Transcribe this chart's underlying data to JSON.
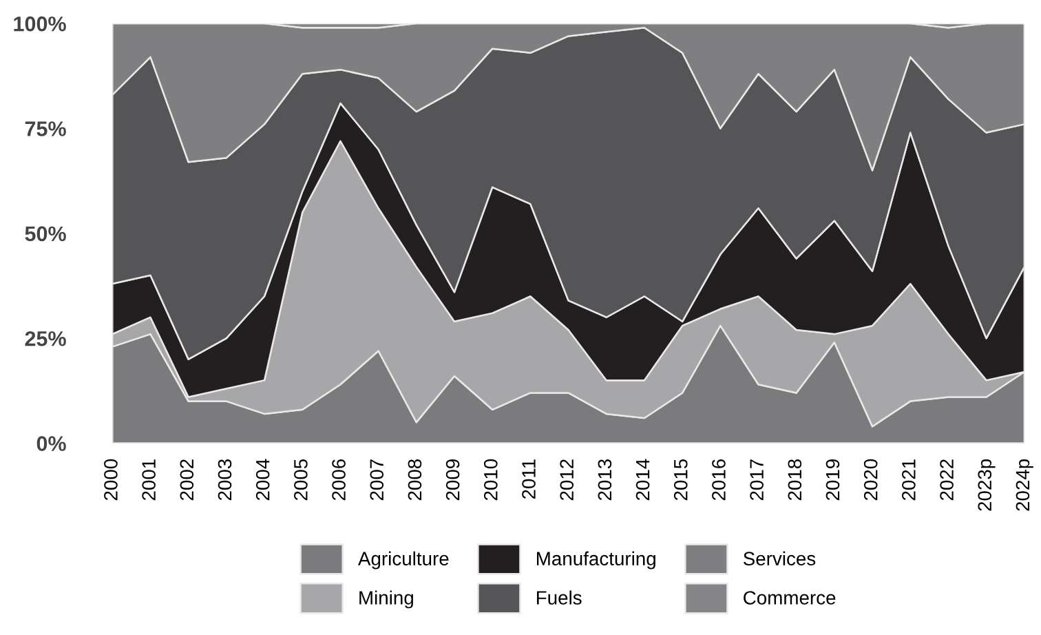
{
  "chart_data": {
    "type": "area",
    "stacked": true,
    "categories": [
      "2000",
      "2001",
      "2002",
      "2003",
      "2004",
      "2005",
      "2006",
      "2007",
      "2008",
      "2009",
      "2010",
      "2011",
      "2012",
      "2013",
      "2014",
      "2015",
      "2016",
      "2017",
      "2018",
      "2019",
      "2020",
      "2021",
      "2022",
      "2023p",
      "2024p"
    ],
    "series": [
      {
        "name": "Agriculture",
        "color": "#7b7b7d",
        "values": [
          23,
          26,
          10,
          10,
          7,
          8,
          14,
          22,
          5,
          16,
          8,
          12,
          12,
          7,
          6,
          12,
          28,
          14,
          12,
          24,
          4,
          10,
          11,
          11,
          17
        ]
      },
      {
        "name": "Mining",
        "color": "#a7a7a9",
        "values": [
          3,
          4,
          1,
          3,
          8,
          47,
          58,
          34,
          37,
          13,
          23,
          23,
          15,
          8,
          9,
          16,
          4,
          21,
          15,
          2,
          24,
          28,
          15,
          4,
          0
        ]
      },
      {
        "name": "Manufacturing",
        "color": "#231f20",
        "values": [
          12,
          10,
          9,
          12,
          20,
          5,
          9,
          14,
          10,
          7,
          30,
          22,
          7,
          15,
          20,
          1,
          13,
          21,
          17,
          27,
          13,
          36,
          21,
          10,
          25
        ]
      },
      {
        "name": "Fuels",
        "color": "#555557",
        "values": [
          45,
          52,
          47,
          43,
          41,
          28,
          8,
          17,
          27,
          48,
          33,
          36,
          63,
          68,
          64,
          64,
          30,
          32,
          35,
          36,
          24,
          18,
          35,
          49,
          34
        ]
      },
      {
        "name": "Services",
        "color": "#7f7f81",
        "values": [
          17,
          8,
          33,
          32,
          24,
          11,
          10,
          12,
          21,
          16,
          6,
          7,
          3,
          2,
          1,
          7,
          25,
          12,
          21,
          11,
          35,
          8,
          17,
          26,
          24
        ]
      },
      {
        "name": "Commerce",
        "color": "#858587",
        "values": [
          0,
          0,
          0,
          0,
          0,
          1,
          1,
          1,
          0,
          0,
          0,
          0,
          0,
          0,
          0,
          0,
          0,
          0,
          0,
          0,
          0,
          0,
          1,
          0,
          0
        ]
      }
    ],
    "ylim": [
      0,
      100
    ],
    "yticks": [
      {
        "value": 0,
        "label": "0%"
      },
      {
        "value": 25,
        "label": "25%"
      },
      {
        "value": 50,
        "label": "50%"
      },
      {
        "value": 75,
        "label": "75%"
      },
      {
        "value": 100,
        "label": "100%"
      }
    ],
    "grid": false,
    "legend": "bottom"
  }
}
